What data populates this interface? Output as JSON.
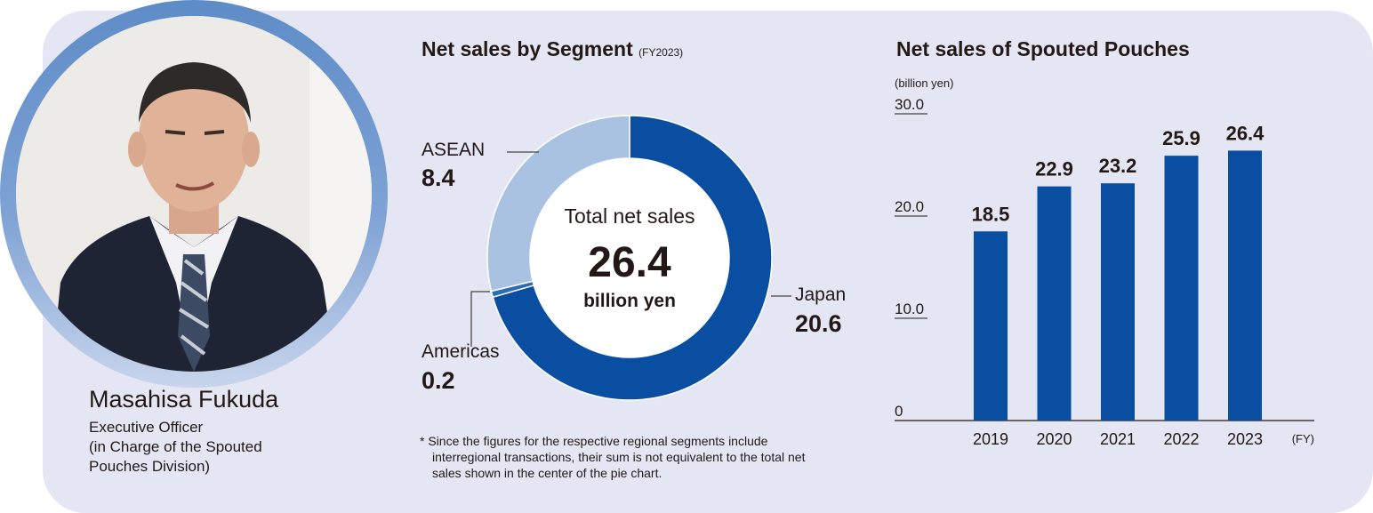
{
  "profile": {
    "name": "Masahisa Fukuda",
    "role_lines": [
      "Executive Officer",
      "(in Charge of the Spouted",
      "Pouches Division)"
    ]
  },
  "chart_data": [
    {
      "type": "pie",
      "title": "Net sales by Segment",
      "subtitle": "(FY2023)",
      "center": {
        "line1": "Total net sales",
        "value": "26.4",
        "unit": "billion yen"
      },
      "slices": [
        {
          "label": "Japan",
          "value": 20.6,
          "color": "#0a4ea1"
        },
        {
          "label": "Americas",
          "value": 0.2,
          "color": "#2c6cb3"
        },
        {
          "label": "ASEAN",
          "value": 8.4,
          "color": "#a9c2e2"
        }
      ],
      "footnote": [
        "* Since the figures for the respective regional segments include",
        "interregional transactions, their sum is not equivalent to the total net",
        "sales shown in the center of the pie chart."
      ]
    },
    {
      "type": "bar",
      "title": "Net sales of Spouted Pouches",
      "ylabel": "(billion yen)",
      "xlabel": "(FY)",
      "categories": [
        "2019",
        "2020",
        "2021",
        "2022",
        "2023"
      ],
      "values": [
        18.5,
        22.9,
        23.2,
        25.9,
        26.4
      ],
      "value_labels": [
        "18.5",
        "22.9",
        "23.2",
        "25.9",
        "26.4"
      ],
      "ylim": [
        0,
        30
      ],
      "yticks": [
        "0",
        "10.0",
        "20.0",
        "30.0"
      ],
      "color": "#0a4ea1"
    }
  ]
}
